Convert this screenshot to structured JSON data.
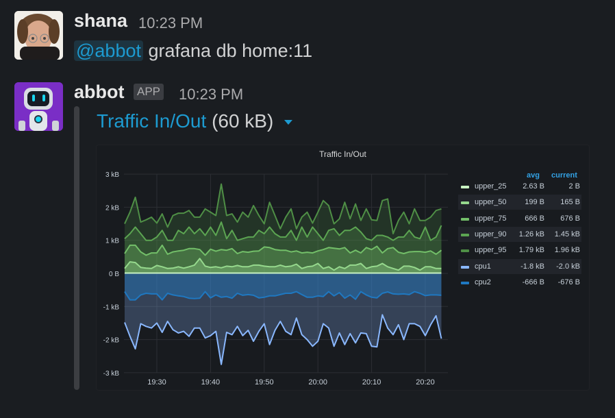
{
  "messages": [
    {
      "author": "shana",
      "time": "10:23 PM",
      "mention": "@abbot",
      "text": "grafana db home:11"
    },
    {
      "author": "abbot",
      "badge": "APP",
      "time": "10:23 PM",
      "attachment": {
        "title": "Traffic In/Out",
        "size": "(60 kB)",
        "panel_title": "Traffic In/Out"
      }
    }
  ],
  "legend": {
    "headers": {
      "avg": "avg",
      "current": "current"
    },
    "rows": [
      {
        "name": "upper_25",
        "avg": "2.63 B",
        "current": "2 B",
        "color": "#c8f2c2"
      },
      {
        "name": "upper_50",
        "avg": "199 B",
        "current": "165 B",
        "color": "#96d98d"
      },
      {
        "name": "upper_75",
        "avg": "666 B",
        "current": "676 B",
        "color": "#73bf69"
      },
      {
        "name": "upper_90",
        "avg": "1.26 kB",
        "current": "1.45 kB",
        "color": "#5ca552"
      },
      {
        "name": "upper_95",
        "avg": "1.79 kB",
        "current": "1.96 kB",
        "color": "#4f8f46"
      },
      {
        "name": "cpu1",
        "avg": "-1.8 kB",
        "current": "-2.0 kB",
        "color": "#8ab8ff"
      },
      {
        "name": "cpu2",
        "avg": "-666 B",
        "current": "-676 B",
        "color": "#1f78c1"
      }
    ]
  },
  "chart_data": {
    "type": "area",
    "title": "Traffic In/Out",
    "xlabel": "",
    "ylabel": "",
    "ylim": [
      -3,
      3
    ],
    "y_unit": "kB",
    "y_ticks": [
      "3 kB",
      "2 kB",
      "1 kB",
      "0 B",
      "-1 kB",
      "-2 kB",
      "-3 kB"
    ],
    "x_ticks": [
      "19:30",
      "19:40",
      "19:50",
      "20:00",
      "20:10",
      "20:20"
    ],
    "x_start_minute": -6,
    "x_step_minutes": 1,
    "grid": true,
    "legend_position": "right",
    "series": [
      {
        "name": "upper_25",
        "color": "#c8f2c2",
        "values": [
          0.01,
          0.01,
          0.01,
          0.01,
          0.01,
          0.01,
          0.01,
          0.01,
          0.01,
          0.01,
          0.01,
          0.01,
          0.01,
          0.01,
          0.01,
          0.01,
          0.01,
          0.01,
          0.01,
          0.01,
          0.01,
          0.01,
          0.01,
          0.01,
          0.01,
          0.01,
          0.01,
          0.01,
          0.01,
          0.01,
          0.01,
          0.01,
          0.01,
          0.01,
          0.01,
          0.01,
          0.01,
          0.01,
          0.01,
          0.01,
          0.01,
          0.01,
          0.01,
          0.01,
          0.01,
          0.01,
          0.01,
          0.01,
          0.01,
          0.01,
          0.01,
          0.01,
          0.01,
          0.01,
          0.01,
          0.01,
          0.01,
          0.01,
          0.01,
          0.01
        ]
      },
      {
        "name": "upper_50",
        "color": "#96d98d",
        "values": [
          0.15,
          0.35,
          0.33,
          0.18,
          0.16,
          0.15,
          0.24,
          0.2,
          0.15,
          0.16,
          0.2,
          0.16,
          0.2,
          0.25,
          0.45,
          0.22,
          0.18,
          0.2,
          0.17,
          0.22,
          0.2,
          0.24,
          0.2,
          0.2,
          0.25,
          0.25,
          0.22,
          0.2,
          0.2,
          0.25,
          0.2,
          0.22,
          0.28,
          0.15,
          0.2,
          0.22,
          0.3,
          0.15,
          0.2,
          0.1,
          0.2,
          0.15,
          0.25,
          0.25,
          0.3,
          0.15,
          0.2,
          0.22,
          0.3,
          0.2,
          0.15,
          0.1,
          0.22,
          0.22,
          0.18,
          0.1,
          0.2,
          0.2,
          0.15,
          0.15
        ]
      },
      {
        "name": "upper_75",
        "color": "#73bf69",
        "values": [
          0.6,
          0.85,
          0.85,
          0.65,
          0.55,
          0.62,
          0.62,
          0.85,
          0.58,
          0.65,
          0.68,
          0.7,
          0.75,
          0.75,
          0.72,
          0.55,
          0.73,
          0.67,
          0.72,
          0.7,
          0.75,
          0.6,
          0.66,
          0.64,
          0.67,
          0.68,
          0.8,
          0.78,
          0.72,
          0.7,
          0.7,
          0.65,
          0.68,
          0.62,
          0.64,
          0.62,
          0.68,
          0.72,
          0.78,
          0.76,
          0.74,
          0.78,
          0.62,
          0.7,
          0.62,
          0.78,
          0.72,
          0.82,
          0.62,
          0.75,
          0.78,
          0.64,
          0.6,
          0.65,
          0.66,
          0.66,
          0.64,
          0.68,
          0.58,
          0.7
        ]
      },
      {
        "name": "upper_90",
        "color": "#5ca552",
        "values": [
          1.05,
          1.2,
          1.4,
          1.2,
          1.0,
          1.0,
          1.1,
          1.3,
          1.0,
          1.0,
          1.3,
          1.2,
          1.4,
          1.2,
          1.35,
          1.15,
          1.4,
          1.15,
          1.55,
          1.05,
          1.3,
          1.0,
          1.05,
          1.1,
          1.1,
          1.3,
          1.2,
          1.4,
          1.2,
          1.1,
          1.1,
          1.3,
          1.0,
          1.4,
          1.1,
          1.4,
          1.2,
          1.0,
          1.3,
          1.35,
          1.15,
          1.3,
          1.3,
          1.4,
          1.25,
          1.05,
          1.0,
          1.15,
          1.15,
          1.1,
          1.0,
          1.1,
          1.1,
          1.3,
          1.1,
          1.05,
          1.4,
          1.0,
          1.1,
          1.45
        ]
      },
      {
        "name": "upper_95",
        "color": "#4f8f46",
        "values": [
          1.5,
          1.85,
          2.3,
          1.55,
          1.62,
          1.7,
          1.52,
          1.8,
          1.4,
          1.75,
          1.82,
          1.82,
          1.9,
          1.7,
          1.7,
          1.95,
          1.85,
          1.75,
          2.7,
          1.75,
          1.8,
          1.55,
          1.85,
          1.7,
          2.05,
          1.75,
          1.5,
          2.15,
          1.75,
          1.35,
          1.7,
          1.95,
          1.35,
          1.7,
          1.85,
          1.52,
          1.85,
          2.2,
          2.05,
          1.5,
          1.65,
          2.15,
          1.65,
          2.1,
          1.6,
          1.95,
          1.62,
          1.6,
          2.2,
          2.25,
          1.2,
          1.6,
          1.85,
          1.5,
          1.95,
          1.6,
          1.6,
          1.7,
          1.9,
          1.95
        ]
      },
      {
        "name": "cpu1",
        "color": "#8ab8ff",
        "values": [
          -1.48,
          -1.9,
          -2.28,
          -1.52,
          -1.6,
          -1.65,
          -1.5,
          -1.78,
          -1.45,
          -1.7,
          -1.8,
          -1.75,
          -1.9,
          -1.65,
          -1.65,
          -1.95,
          -1.88,
          -1.75,
          -2.75,
          -1.78,
          -1.85,
          -1.6,
          -1.88,
          -1.72,
          -2.05,
          -1.75,
          -1.52,
          -2.15,
          -1.72,
          -1.45,
          -1.75,
          -1.85,
          -1.35,
          -1.85,
          -2.0,
          -2.2,
          -2.05,
          -1.52,
          -1.65,
          -2.2,
          -1.8,
          -2.15,
          -1.82,
          -2.1,
          -1.8,
          -1.82,
          -2.2,
          -2.22,
          -1.25,
          -1.65,
          -1.85,
          -1.55,
          -2.0,
          -1.52,
          -1.52,
          -1.6,
          -1.88,
          -1.55,
          -1.28,
          -1.97
        ]
      },
      {
        "name": "cpu2",
        "color": "#1f78c1",
        "values": [
          -0.55,
          -0.8,
          -0.8,
          -0.65,
          -0.6,
          -0.62,
          -0.62,
          -0.8,
          -0.6,
          -0.65,
          -0.68,
          -0.7,
          -0.75,
          -0.76,
          -0.75,
          -0.55,
          -0.74,
          -0.65,
          -0.72,
          -0.7,
          -0.75,
          -0.6,
          -0.66,
          -0.64,
          -0.66,
          -0.74,
          -0.72,
          -0.68,
          -0.68,
          -0.64,
          -0.6,
          -0.6,
          -0.55,
          -0.64,
          -0.72,
          -0.72,
          -0.68,
          -0.7,
          -0.55,
          -0.68,
          -0.58,
          -0.75,
          -0.65,
          -0.78,
          -0.55,
          -0.65,
          -0.72,
          -0.74,
          -0.6,
          -0.56,
          -0.62,
          -0.63,
          -0.62,
          -0.64,
          -0.55,
          -0.6,
          -0.67,
          -0.65,
          -0.65,
          -0.66
        ]
      }
    ]
  }
}
